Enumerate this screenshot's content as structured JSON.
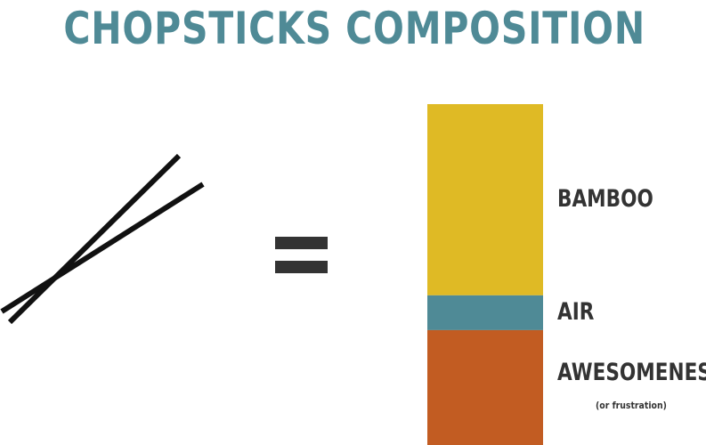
{
  "title": "CHOPSTICKS COMPOSITION",
  "colors": {
    "title": "#4f8a96",
    "chopsticks": "#111111",
    "equals": "#333333",
    "text": "#333333"
  },
  "chart_data": {
    "type": "bar",
    "stacked": true,
    "title": "CHOPSTICKS COMPOSITION",
    "xlabel": "",
    "ylabel": "",
    "grid": false,
    "legend": "none",
    "series": [
      {
        "name": "BAMBOO",
        "value": 56.1,
        "color": "#dfba25"
      },
      {
        "name": "AIR",
        "value": 10.2,
        "color": "#4f8a96"
      },
      {
        "name": "AWESOMENESS",
        "note": "(or frustration)",
        "value": 33.7,
        "color": "#c25c22"
      }
    ]
  }
}
